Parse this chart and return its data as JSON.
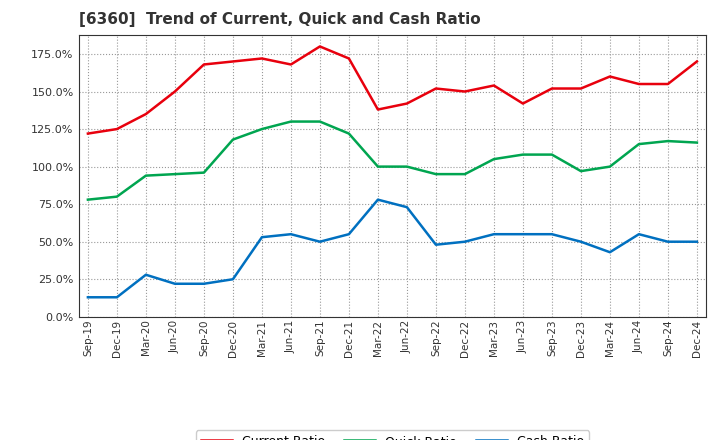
{
  "title": "[6360]  Trend of Current, Quick and Cash Ratio",
  "x_labels": [
    "Sep-19",
    "Dec-19",
    "Mar-20",
    "Jun-20",
    "Sep-20",
    "Dec-20",
    "Mar-21",
    "Jun-21",
    "Sep-21",
    "Dec-21",
    "Mar-22",
    "Jun-22",
    "Sep-22",
    "Dec-22",
    "Mar-23",
    "Jun-23",
    "Sep-23",
    "Dec-23",
    "Mar-24",
    "Jun-24",
    "Sep-24",
    "Dec-24"
  ],
  "current_ratio": [
    1.22,
    1.25,
    1.35,
    1.5,
    1.68,
    1.7,
    1.72,
    1.68,
    1.8,
    1.72,
    1.38,
    1.42,
    1.52,
    1.5,
    1.54,
    1.42,
    1.52,
    1.52,
    1.6,
    1.55,
    1.55,
    1.7
  ],
  "quick_ratio": [
    0.78,
    0.8,
    0.94,
    0.95,
    0.96,
    1.18,
    1.25,
    1.3,
    1.3,
    1.22,
    1.0,
    1.0,
    0.95,
    0.95,
    1.05,
    1.08,
    1.08,
    0.97,
    1.0,
    1.15,
    1.17,
    1.16
  ],
  "cash_ratio": [
    0.13,
    0.13,
    0.28,
    0.22,
    0.22,
    0.25,
    0.53,
    0.55,
    0.5,
    0.55,
    0.78,
    0.73,
    0.48,
    0.5,
    0.55,
    0.55,
    0.55,
    0.5,
    0.43,
    0.55,
    0.5,
    0.5
  ],
  "current_color": "#e8000d",
  "quick_color": "#00a550",
  "cash_color": "#0070c0",
  "ylim": [
    0.0,
    1.875
  ],
  "yticks": [
    0.0,
    0.25,
    0.5,
    0.75,
    1.0,
    1.25,
    1.5,
    1.75
  ],
  "background_color": "#ffffff",
  "grid_color": "#999999",
  "title_color": "#333333"
}
